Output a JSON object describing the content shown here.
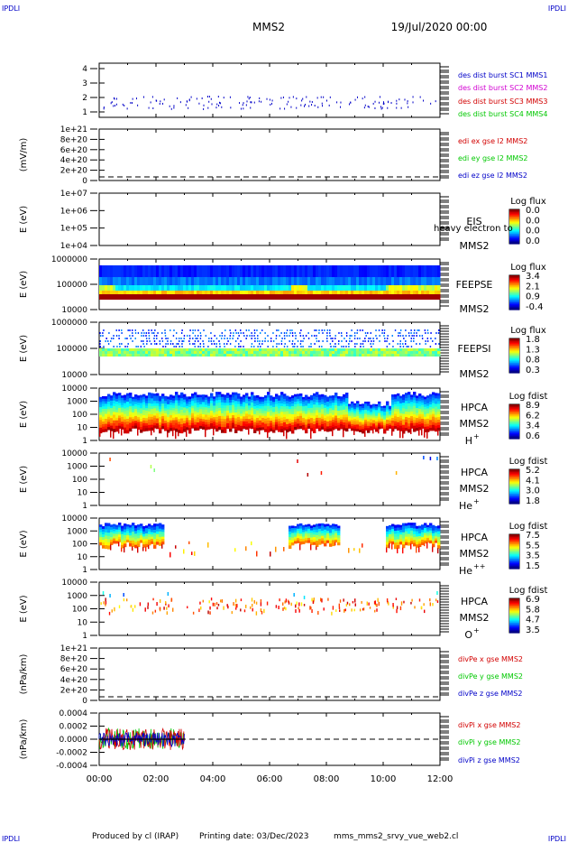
{
  "corner_labels": [
    "IPDLI",
    "IPDLI",
    "IPDLI",
    "IPDLI"
  ],
  "header": {
    "spacecraft": "MMS2",
    "date": "19/Jul/2020 00:00"
  },
  "footer": {
    "producer": "Produced by cl (IRAP)",
    "printing": "Printing date: 03/Dec/2023",
    "file": "mms_mms2_srvy_vue_web2.cl"
  },
  "colors": {
    "blue": "#0000c8",
    "magenta": "#d200d2",
    "red": "#d20000",
    "green": "#00c800"
  },
  "chart_data": [
    {
      "type": "line",
      "panel": "burst",
      "yticks": [
        "4",
        "3",
        "2",
        "1"
      ],
      "legend": [
        {
          "name": "des dist burst SC1 MMS1",
          "color": "#0000c8"
        },
        {
          "name": "des dist burst SC2 MMS2",
          "color": "#d200d2"
        },
        {
          "name": "des dist burst SC3 MMS3",
          "color": "#d20000"
        },
        {
          "name": "des dist burst SC4 MMS4",
          "color": "#00c800"
        }
      ]
    },
    {
      "type": "line",
      "panel": "edi",
      "ylabel": "(mV/m)",
      "yticks": [
        "1e+21",
        "8e+20",
        "6e+20",
        "4e+20",
        "2e+20",
        "0"
      ],
      "legend": [
        {
          "name": "edi ex gse l2 MMS2",
          "color": "#d20000"
        },
        {
          "name": "edi ey gse l2 MMS2",
          "color": "#00c800"
        },
        {
          "name": "edi ez gse l2 MMS2",
          "color": "#0000c8"
        }
      ]
    },
    {
      "type": "heatmap",
      "panel": "eis",
      "ylabel": "E (eV)",
      "yticks": [
        "1e+07",
        "1e+06",
        "1e+05",
        "1e+04"
      ],
      "instrument": "EIS",
      "spacecraft": "MMS2",
      "note": "heavy electron to",
      "colorbar": {
        "title": "Log flux",
        "ticks": [
          "0.0",
          "0.0",
          "0.0",
          "0.0"
        ]
      }
    },
    {
      "type": "heatmap",
      "panel": "feepse",
      "ylabel": "E (eV)",
      "yticks": [
        "1000000",
        "100000",
        "10000"
      ],
      "instrument": "FEEPSE",
      "spacecraft": "MMS2",
      "colorbar": {
        "title": "Log flux",
        "ticks": [
          "3.4",
          "2.1",
          "0.9",
          "-0.4"
        ]
      }
    },
    {
      "type": "heatmap",
      "panel": "feepsi",
      "ylabel": "E (eV)",
      "yticks": [
        "1000000",
        "100000",
        "10000"
      ],
      "instrument": "FEEPSI",
      "spacecraft": "MMS2",
      "colorbar": {
        "title": "Log flux",
        "ticks": [
          "1.8",
          "1.3",
          "0.8",
          "0.3"
        ]
      }
    },
    {
      "type": "heatmap",
      "panel": "hpca_h",
      "ylabel": "E (eV)",
      "yticks": [
        "10000",
        "1000",
        "100",
        "10",
        "1"
      ],
      "instrument": "HPCA",
      "spacecraft": "MMS2",
      "species": "H",
      "charge": "+",
      "colorbar": {
        "title": "Log fdist",
        "ticks": [
          "8.9",
          "6.2",
          "3.4",
          "0.6"
        ]
      }
    },
    {
      "type": "heatmap",
      "panel": "hpca_he",
      "ylabel": "E (eV)",
      "yticks": [
        "10000",
        "1000",
        "100",
        "10",
        "1"
      ],
      "instrument": "HPCA",
      "spacecraft": "MMS2",
      "species": "He",
      "charge": "+",
      "colorbar": {
        "title": "Log fdist",
        "ticks": [
          "5.2",
          "4.1",
          "3.0",
          "1.8"
        ]
      }
    },
    {
      "type": "heatmap",
      "panel": "hpca_hepp",
      "ylabel": "E (eV)",
      "yticks": [
        "10000",
        "1000",
        "100",
        "10",
        "1"
      ],
      "instrument": "HPCA",
      "spacecraft": "MMS2",
      "species": "He",
      "charge": "++",
      "colorbar": {
        "title": "Log fdist",
        "ticks": [
          "7.5",
          "5.5",
          "3.5",
          "1.5"
        ]
      }
    },
    {
      "type": "heatmap",
      "panel": "hpca_o",
      "ylabel": "E (eV)",
      "yticks": [
        "10000",
        "1000",
        "100",
        "10",
        "1"
      ],
      "instrument": "HPCA",
      "spacecraft": "MMS2",
      "species": "O",
      "charge": "+",
      "colorbar": {
        "title": "Log fdist",
        "ticks": [
          "6.9",
          "5.8",
          "4.7",
          "3.5"
        ]
      }
    },
    {
      "type": "line",
      "panel": "divpe",
      "ylabel": "(nPa/km)",
      "yticks": [
        "1e+21",
        "8e+20",
        "6e+20",
        "4e+20",
        "2e+20",
        "0"
      ],
      "legend": [
        {
          "name": "divPe x gse MMS2",
          "color": "#d20000"
        },
        {
          "name": "divPe y gse MMS2",
          "color": "#00c800"
        },
        {
          "name": "divPe z gse MMS2",
          "color": "#0000c8"
        }
      ]
    },
    {
      "type": "line",
      "panel": "divpi",
      "ylabel": "(nPa/km)",
      "yticks": [
        "0.0004",
        "0.0002",
        "0.0000",
        "-0.0002",
        "-0.0004"
      ],
      "legend": [
        {
          "name": "divPi x gse MMS2",
          "color": "#d20000"
        },
        {
          "name": "divPi y gse MMS2",
          "color": "#00c800"
        },
        {
          "name": "divPi z gse MMS2",
          "color": "#0000c8"
        }
      ],
      "data_end": "03:00"
    }
  ],
  "xaxis": {
    "ticks": [
      "00:00",
      "02:00",
      "04:00",
      "06:00",
      "08:00",
      "10:00",
      "12:00"
    ]
  }
}
